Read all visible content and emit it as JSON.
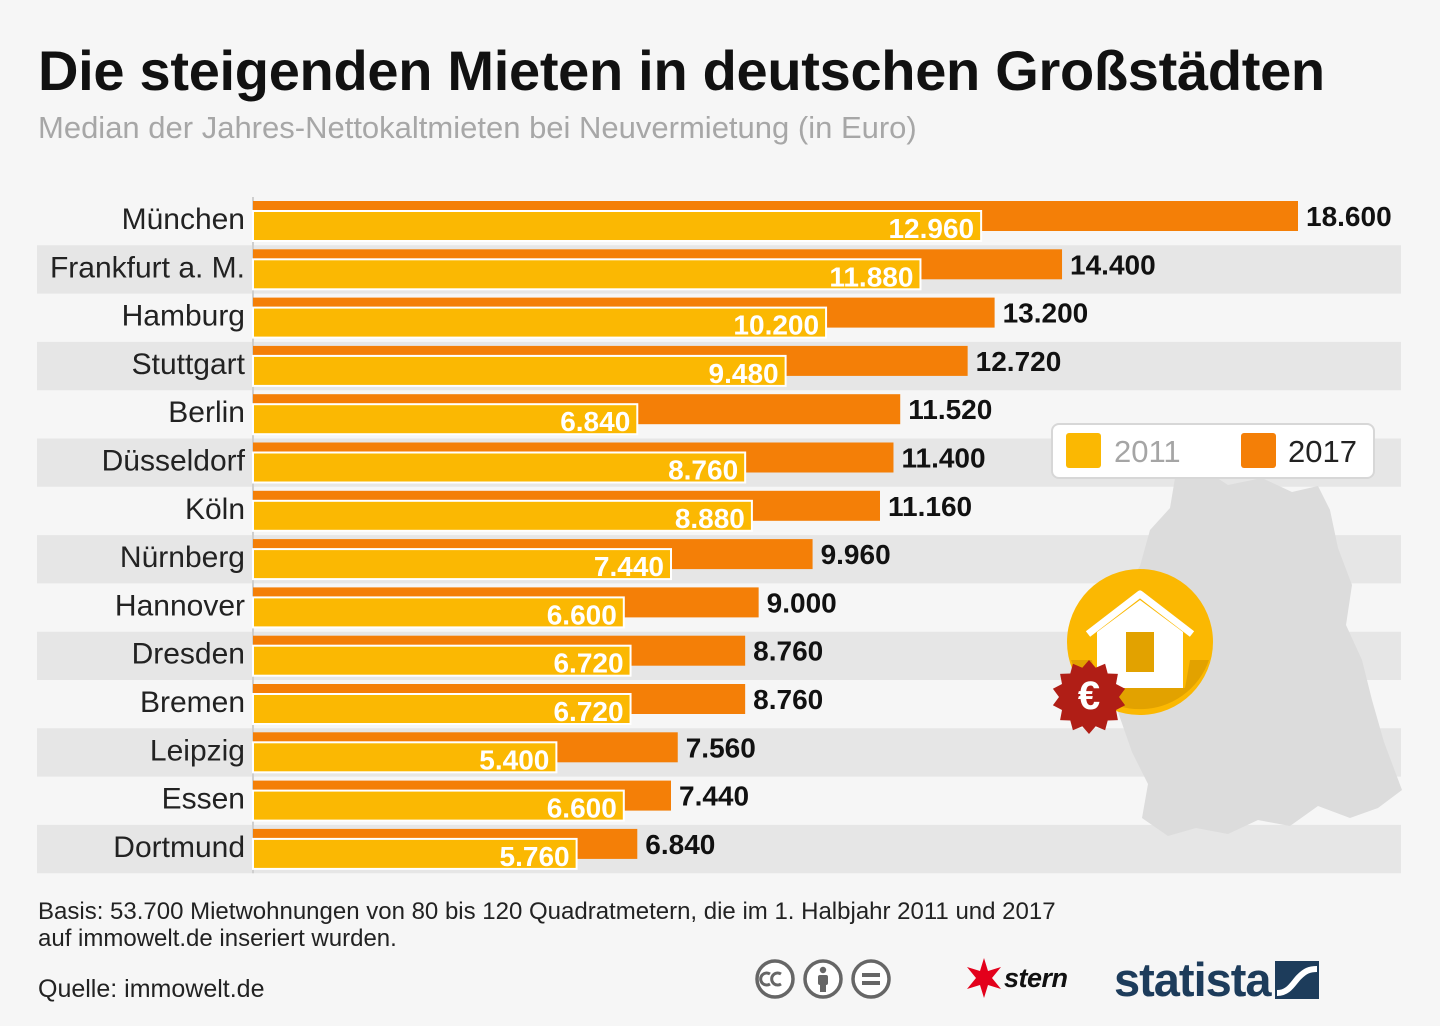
{
  "header": {
    "title": "Die steigenden Mieten in deutschen Großstädten",
    "subtitle": "Median der Jahres-Nettokaltmieten bei Neuvermietung (in Euro)"
  },
  "chart_data": {
    "type": "bar",
    "orientation": "horizontal",
    "title": "Die steigenden Mieten in deutschen Großstädten",
    "subtitle": "Median der Jahres-Nettokaltmieten bei Neuvermietung (in Euro)",
    "categories": [
      "München",
      "Frankfurt a. M.",
      "Hamburg",
      "Stuttgart",
      "Berlin",
      "Düsseldorf",
      "Köln",
      "Nürnberg",
      "Hannover",
      "Dresden",
      "Bremen",
      "Leipzig",
      "Essen",
      "Dortmund"
    ],
    "series": [
      {
        "name": "2011",
        "color": "#fbb802",
        "values": [
          12960,
          11880,
          10200,
          9480,
          6840,
          8760,
          8880,
          7440,
          6600,
          6720,
          6720,
          5400,
          6600,
          5760
        ],
        "labels": [
          "12.960",
          "11.880",
          "10.200",
          "9.480",
          "6.840",
          "8.760",
          "8.880",
          "7.440",
          "6.600",
          "6.720",
          "6.720",
          "5.400",
          "6.600",
          "5.760"
        ]
      },
      {
        "name": "2017",
        "color": "#f47f07",
        "values": [
          18600,
          14400,
          13200,
          12720,
          11520,
          11400,
          11160,
          9960,
          9000,
          8760,
          8760,
          7560,
          7440,
          6840
        ],
        "labels": [
          "18.600",
          "14.400",
          "13.200",
          "12.720",
          "11.520",
          "11.400",
          "11.160",
          "9.960",
          "9.000",
          "8.760",
          "8.760",
          "7.560",
          "7.440",
          "6.840"
        ]
      }
    ],
    "xlim": [
      0,
      18600
    ],
    "xlabel": "",
    "ylabel": "",
    "grid": false,
    "legend": {
      "position": "right",
      "entries": [
        "2011",
        "2017"
      ]
    }
  },
  "decor": {
    "euro_symbol": "€"
  },
  "footer": {
    "note": "Basis: 53.700 Mietwohnungen von 80 bis 120 Quadratmetern, die im 1. Halbjahr 2011 und 2017 auf immowelt.de inseriert wurden.",
    "source": "Quelle: immowelt.de",
    "stern_logo": "stern",
    "statista_logo": "statista"
  },
  "colors": {
    "bar_2011": "#fbb802",
    "bar_2017": "#f47f07",
    "stripe": "#e6e6e6",
    "map": "#dcdcdc",
    "badge_red": "#b01e16",
    "statista_blue": "#1d3c5b"
  }
}
